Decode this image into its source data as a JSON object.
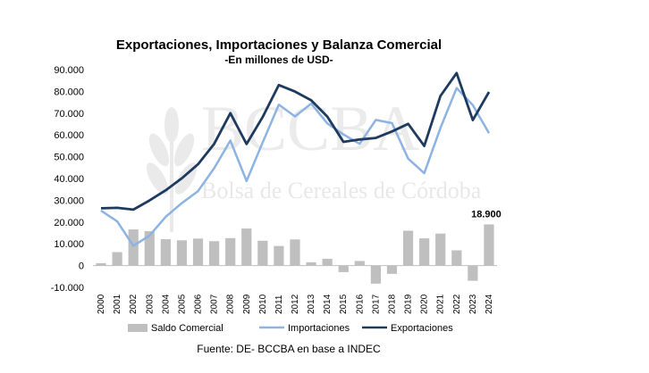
{
  "chart_data": {
    "type": "bar+line",
    "title": "Exportaciones, Importaciones y Balanza Comercial",
    "subtitle": "-En millones de USD-",
    "source": "Fuente: DE- BCCBA en base a INDEC",
    "watermark": {
      "logo_text": "BCCBA",
      "text": "Bolsa de Cereales de Córdoba"
    },
    "categories": [
      "2000",
      "2001",
      "2002",
      "2003",
      "2004",
      "2005",
      "2006",
      "2007",
      "2008",
      "2009",
      "2010",
      "2011",
      "2012",
      "2013",
      "2014",
      "2015",
      "2016",
      "2017",
      "2018",
      "2019",
      "2020",
      "2021",
      "2022",
      "2023",
      "2024"
    ],
    "yticks": [
      "90.000",
      "80.000",
      "70.000",
      "60.000",
      "50.000",
      "40.000",
      "30.000",
      "20.000",
      "10.000",
      "0",
      "-10.000"
    ],
    "ylim": [
      -10000,
      90000
    ],
    "series": [
      {
        "name": "Saldo Comercial",
        "kind": "bar",
        "color": "#bfbfbf",
        "values": [
          1100,
          6200,
          16600,
          15800,
          12100,
          11600,
          12400,
          11200,
          12600,
          17000,
          11400,
          9000,
          12000,
          1500,
          3100,
          -3000,
          2100,
          -8300,
          -3800,
          16000,
          12500,
          14700,
          7000,
          -7000,
          18900
        ]
      },
      {
        "name": "Importaciones",
        "kind": "line",
        "color": "#8db3e2",
        "values": [
          25200,
          20300,
          9000,
          13800,
          22400,
          28700,
          34200,
          44700,
          57400,
          38800,
          56500,
          73900,
          68500,
          74400,
          65300,
          60200,
          55900,
          66900,
          65400,
          49100,
          42400,
          63200,
          81500,
          73700,
          60800
        ]
      },
      {
        "name": "Exportaciones",
        "kind": "line",
        "color": "#1f3a5f",
        "values": [
          26300,
          26500,
          25700,
          29900,
          34600,
          40100,
          46500,
          55900,
          70000,
          55800,
          68200,
          82900,
          79900,
          75900,
          68400,
          56800,
          57900,
          58600,
          61600,
          65100,
          54900,
          77900,
          88400,
          66800,
          79700
        ]
      }
    ],
    "annotations": [
      {
        "category": "2024",
        "text": "18.900"
      }
    ],
    "legend_position": "bottom",
    "grid": false
  }
}
